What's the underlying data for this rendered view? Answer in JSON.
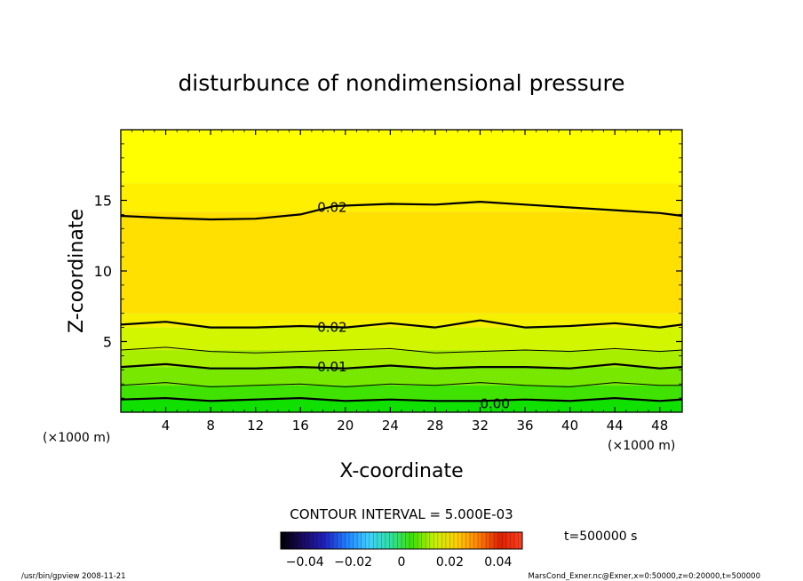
{
  "chart_data": {
    "type": "heatmap",
    "title": "disturbunce of nondimensional pressure",
    "xlabel": "X-coordinate",
    "ylabel": "Z-coordinate",
    "x_unit_left": "(×1000 m)",
    "x_unit_right": "(×1000 m)",
    "xlim": [
      0,
      50
    ],
    "ylim": [
      0,
      20
    ],
    "x_ticks": [
      4,
      8,
      12,
      16,
      20,
      24,
      28,
      32,
      36,
      40,
      44,
      48
    ],
    "y_ticks": [
      5,
      10,
      15
    ],
    "contour_interval_text": "CONTOUR INTERVAL = 5.000E-03",
    "contour_labels": [
      {
        "text": "0.02",
        "x": 17.5,
        "y": 14.5
      },
      {
        "text": "0.02",
        "x": 17.5,
        "y": 6.0
      },
      {
        "text": "0.01",
        "x": 17.5,
        "y": 3.2
      },
      {
        "text": "0.00",
        "x": 32.0,
        "y": 0.6
      }
    ],
    "contour_lines": [
      {
        "value": 0.02,
        "weight": "bold",
        "x": [
          0,
          4,
          8,
          12,
          16,
          19,
          24,
          28,
          32,
          36,
          40,
          44,
          48,
          50
        ],
        "y": [
          13.9,
          13.75,
          13.65,
          13.7,
          14.0,
          14.6,
          14.75,
          14.7,
          14.9,
          14.7,
          14.5,
          14.3,
          14.1,
          13.9
        ]
      },
      {
        "value": 0.02,
        "weight": "bold",
        "x": [
          0,
          4,
          8,
          12,
          16,
          20,
          24,
          28,
          32,
          36,
          40,
          44,
          48,
          50
        ],
        "y": [
          6.2,
          6.4,
          6.0,
          6.0,
          6.1,
          6.0,
          6.3,
          6.0,
          6.5,
          6.0,
          6.1,
          6.3,
          6.0,
          6.2
        ]
      },
      {
        "value": 0.015,
        "weight": "thin",
        "x": [
          0,
          4,
          8,
          12,
          16,
          20,
          24,
          28,
          32,
          36,
          40,
          44,
          48,
          50
        ],
        "y": [
          4.4,
          4.6,
          4.3,
          4.2,
          4.3,
          4.4,
          4.5,
          4.2,
          4.3,
          4.4,
          4.3,
          4.5,
          4.3,
          4.4
        ]
      },
      {
        "value": 0.01,
        "weight": "bold",
        "x": [
          0,
          4,
          8,
          12,
          16,
          20,
          24,
          28,
          32,
          36,
          40,
          44,
          48,
          50
        ],
        "y": [
          3.2,
          3.4,
          3.1,
          3.1,
          3.2,
          3.1,
          3.3,
          3.1,
          3.2,
          3.2,
          3.1,
          3.4,
          3.1,
          3.2
        ]
      },
      {
        "value": 0.005,
        "weight": "thin",
        "x": [
          0,
          4,
          8,
          12,
          16,
          20,
          24,
          28,
          32,
          36,
          40,
          44,
          48,
          50
        ],
        "y": [
          1.9,
          2.1,
          1.8,
          1.9,
          2.0,
          1.8,
          2.0,
          1.9,
          2.1,
          1.9,
          1.8,
          2.1,
          1.9,
          1.9
        ]
      },
      {
        "value": 0.0,
        "weight": "bold",
        "x": [
          0,
          4,
          8,
          12,
          16,
          20,
          24,
          28,
          32,
          36,
          40,
          44,
          48,
          50
        ],
        "y": [
          0.9,
          1.0,
          0.8,
          0.9,
          1.0,
          0.8,
          0.9,
          0.8,
          0.8,
          0.9,
          0.8,
          1.0,
          0.8,
          0.9
        ]
      }
    ],
    "fill_bands": [
      {
        "from": 16.2,
        "to": 20.0,
        "color": "#ffff00"
      },
      {
        "from": 14.2,
        "to": 16.2,
        "color": "#fff000"
      },
      {
        "from": 7.0,
        "to": 14.2,
        "color": "#ffe000"
      },
      {
        "from": 6.0,
        "to": 7.0,
        "color": "#f4f000"
      },
      {
        "from": 4.4,
        "to": 6.0,
        "color": "#d2f500"
      },
      {
        "from": 3.2,
        "to": 4.4,
        "color": "#a8ee00"
      },
      {
        "from": 1.9,
        "to": 3.2,
        "color": "#78e800"
      },
      {
        "from": 0.9,
        "to": 1.9,
        "color": "#40e200"
      },
      {
        "from": 0.0,
        "to": 0.9,
        "color": "#10e000"
      }
    ],
    "colorbar": {
      "range": [
        -0.05,
        0.05
      ],
      "tick_values": [
        -0.04,
        -0.02,
        0,
        0.02,
        0.04
      ],
      "tick_labels": [
        "−0.04",
        "−0.02",
        "0",
        "0.02",
        "0.04"
      ],
      "stops": [
        "#000000",
        "#1a0a60",
        "#2020c0",
        "#2080ff",
        "#40d0ff",
        "#30e0a0",
        "#40e000",
        "#c8f000",
        "#ffd000",
        "#ff8000",
        "#e02000",
        "#ff4020"
      ]
    }
  },
  "time_label": "t=500000 s",
  "footer_left": "/usr/bin/gpview   2008-11-21",
  "footer_right": "MarsCond_Exner.nc@Exner,x=0:50000,z=0:20000,t=500000"
}
